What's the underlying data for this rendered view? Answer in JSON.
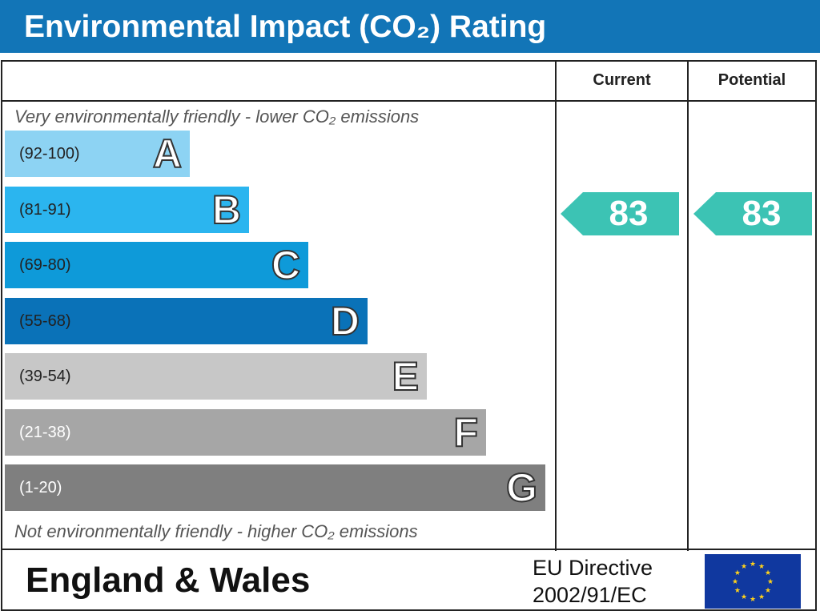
{
  "title": "Environmental Impact (CO₂) Rating",
  "columns": {
    "current": "Current",
    "potential": "Potential"
  },
  "notes": {
    "top": "Very environmentally friendly - lower CO₂ emissions",
    "bottom": "Not environmentally friendly - higher CO₂ emissions"
  },
  "chart_data": {
    "type": "bar",
    "categories": [
      "A",
      "B",
      "C",
      "D",
      "E",
      "F",
      "G"
    ],
    "bands": [
      {
        "letter": "A",
        "range": "(92-100)",
        "color": "#8dd3f3",
        "text_color": "#222222"
      },
      {
        "letter": "B",
        "range": "(81-91)",
        "color": "#2bb5ef",
        "text_color": "#222222"
      },
      {
        "letter": "C",
        "range": "(69-80)",
        "color": "#0e9ad9",
        "text_color": "#222222"
      },
      {
        "letter": "D",
        "range": "(55-68)",
        "color": "#0a72b8",
        "text_color": "#222222"
      },
      {
        "letter": "E",
        "range": "(39-54)",
        "color": "#c7c7c7",
        "text_color": "#222222"
      },
      {
        "letter": "F",
        "range": "(21-38)",
        "color": "#a6a6a6",
        "text_color": "#ffffff"
      },
      {
        "letter": "G",
        "range": "(1-20)",
        "color": "#7f7f7f",
        "text_color": "#ffffff"
      }
    ],
    "current": 83,
    "potential": 83,
    "indicator_color": "#3cc3b4"
  },
  "footer": {
    "region": "England & Wales",
    "directive_line1": "EU Directive",
    "directive_line2": "2002/91/EC"
  },
  "colors": {
    "title_bar": "#1275b7",
    "eu_flag": "#10389f",
    "eu_stars": "#ffd21a"
  }
}
